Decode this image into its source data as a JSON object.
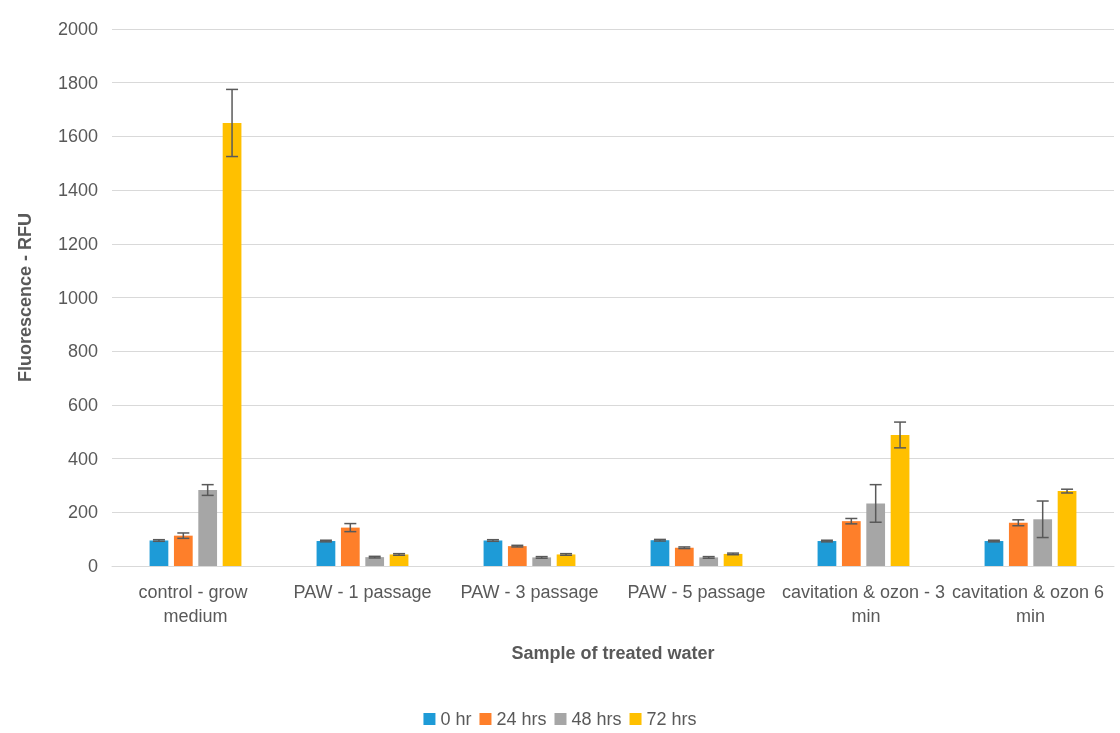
{
  "chart_data": {
    "type": "bar",
    "xlabel": "Sample of treated water",
    "ylabel": "Fluorescence - RFU",
    "categories": [
      "control - grow medium",
      "PAW - 1 passage",
      "PAW - 3 passage",
      "PAW - 5 passage",
      "cavitation & ozon - 3 min",
      "cavitation & ozon 6 min"
    ],
    "series": [
      {
        "name": "0 hr",
        "color": "#1e9bd7",
        "values": [
          95,
          93,
          95,
          96,
          93,
          93
        ],
        "errors": [
          3,
          3,
          3,
          3,
          3,
          3
        ]
      },
      {
        "name": "24 hrs",
        "color": "#fe7f2a",
        "values": [
          113,
          143,
          74,
          68,
          167,
          161
        ],
        "errors": [
          10,
          15,
          3,
          3,
          10,
          11
        ]
      },
      {
        "name": "48 hrs",
        "color": "#a6a6a6",
        "values": [
          283,
          33,
          32,
          32,
          233,
          174
        ],
        "errors": [
          20,
          3,
          3,
          3,
          70,
          68
        ]
      },
      {
        "name": "72 hrs",
        "color": "#ffc000",
        "values": [
          1650,
          43,
          43,
          45,
          488,
          279
        ],
        "errors": [
          125,
          3,
          3,
          3,
          48,
          7
        ]
      }
    ],
    "ylim": [
      0,
      2000
    ],
    "yticks": [
      0,
      200,
      400,
      600,
      800,
      1000,
      1200,
      1400,
      1600,
      1800,
      2000
    ],
    "grid": "y",
    "legend": "bottom"
  }
}
